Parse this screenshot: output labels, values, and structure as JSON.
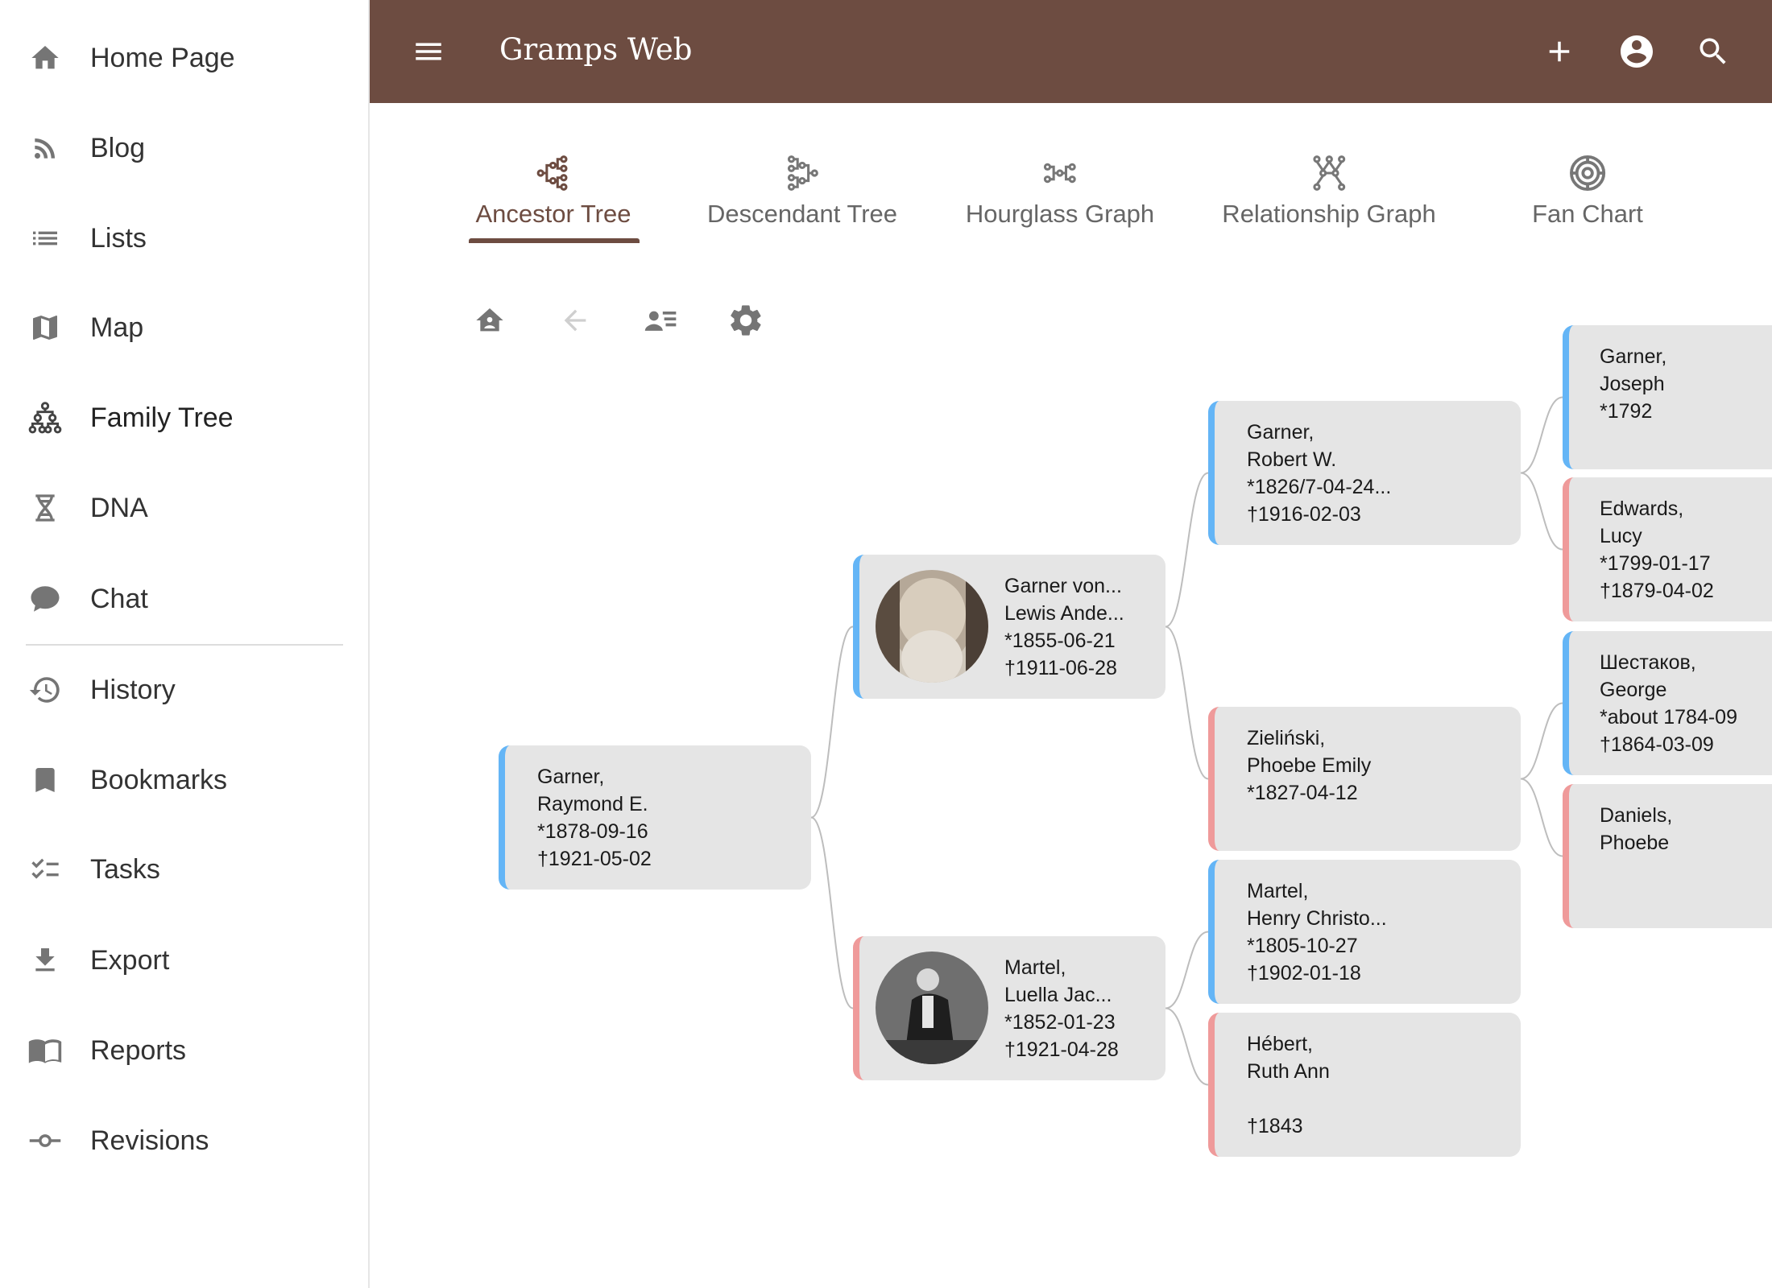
{
  "app": {
    "title": "Gramps Web"
  },
  "colors": {
    "header": "#6D4C41",
    "male": "#64B5F6",
    "female": "#EF9A9A",
    "card": "#E5E5E5"
  },
  "sidebar": {
    "items": [
      {
        "label": "Home Page",
        "icon": "home-icon"
      },
      {
        "label": "Blog",
        "icon": "rss-icon"
      },
      {
        "label": "Lists",
        "icon": "list-icon"
      },
      {
        "label": "Map",
        "icon": "map-icon"
      },
      {
        "label": "Family Tree",
        "icon": "family-tree-icon",
        "active": true
      },
      {
        "label": "DNA",
        "icon": "dna-icon"
      },
      {
        "label": "Chat",
        "icon": "chat-icon"
      },
      {
        "label": "History",
        "icon": "history-icon"
      },
      {
        "label": "Bookmarks",
        "icon": "bookmark-icon"
      },
      {
        "label": "Tasks",
        "icon": "tasks-icon"
      },
      {
        "label": "Export",
        "icon": "download-icon"
      },
      {
        "label": "Reports",
        "icon": "book-icon"
      },
      {
        "label": "Revisions",
        "icon": "commit-icon"
      }
    ]
  },
  "header": {
    "icons": [
      "menu-icon",
      "add-icon",
      "account-icon",
      "search-icon"
    ]
  },
  "tabs": [
    {
      "label": "Ancestor Tree",
      "active": true
    },
    {
      "label": "Descendant Tree"
    },
    {
      "label": "Hourglass Graph"
    },
    {
      "label": "Relationship Graph"
    },
    {
      "label": "Fan Chart"
    }
  ],
  "toolbar": [
    "home-person-icon",
    "back-arrow-icon",
    "person-list-icon",
    "settings-icon"
  ],
  "people": [
    {
      "id": "raymond",
      "sex": "m",
      "lines": [
        "Garner,",
        "Raymond E.",
        "*1878-09-16",
        "†1921-05-02"
      ]
    },
    {
      "id": "lewis",
      "sex": "m",
      "photo": true,
      "parent_of": "raymond",
      "lines": [
        "Garner von...",
        "Lewis Ande...",
        "*1855-06-21",
        "†1911-06-28"
      ]
    },
    {
      "id": "luella",
      "sex": "f",
      "photo": true,
      "parent_of": "raymond",
      "lines": [
        "Martel,",
        "Luella Jac...",
        "*1852-01-23",
        "†1921-04-28"
      ]
    },
    {
      "id": "robert",
      "sex": "m",
      "parent_of": "lewis",
      "lines": [
        "Garner,",
        "Robert W.",
        "*1826/7-04-24...",
        "†1916-02-03"
      ]
    },
    {
      "id": "phoebez",
      "sex": "f",
      "parent_of": "lewis",
      "lines": [
        "Zieliński,",
        "Phoebe Emily",
        "*1827-04-12",
        ""
      ]
    },
    {
      "id": "henry",
      "sex": "m",
      "parent_of": "luella",
      "lines": [
        "Martel,",
        "Henry Christo...",
        "*1805-10-27",
        "†1902-01-18"
      ]
    },
    {
      "id": "ruth",
      "sex": "f",
      "parent_of": "luella",
      "lines": [
        "Hébert,",
        "Ruth Ann",
        "",
        "†1843"
      ]
    },
    {
      "id": "joseph",
      "sex": "m",
      "parent_of": "robert",
      "lines": [
        "Garner,",
        "Joseph",
        "*1792",
        ""
      ]
    },
    {
      "id": "lucy",
      "sex": "f",
      "parent_of": "robert",
      "lines": [
        "Edwards,",
        "Lucy",
        "*1799-01-17",
        "†1879-04-02"
      ]
    },
    {
      "id": "george",
      "sex": "m",
      "parent_of": "phoebez",
      "lines": [
        "Шестаков,",
        "George",
        "*about 1784-09",
        "†1864-03-09"
      ]
    },
    {
      "id": "daniels",
      "sex": "f",
      "parent_of": "phoebez",
      "lines": [
        "Daniels,",
        "Phoebe",
        "",
        ""
      ]
    }
  ]
}
